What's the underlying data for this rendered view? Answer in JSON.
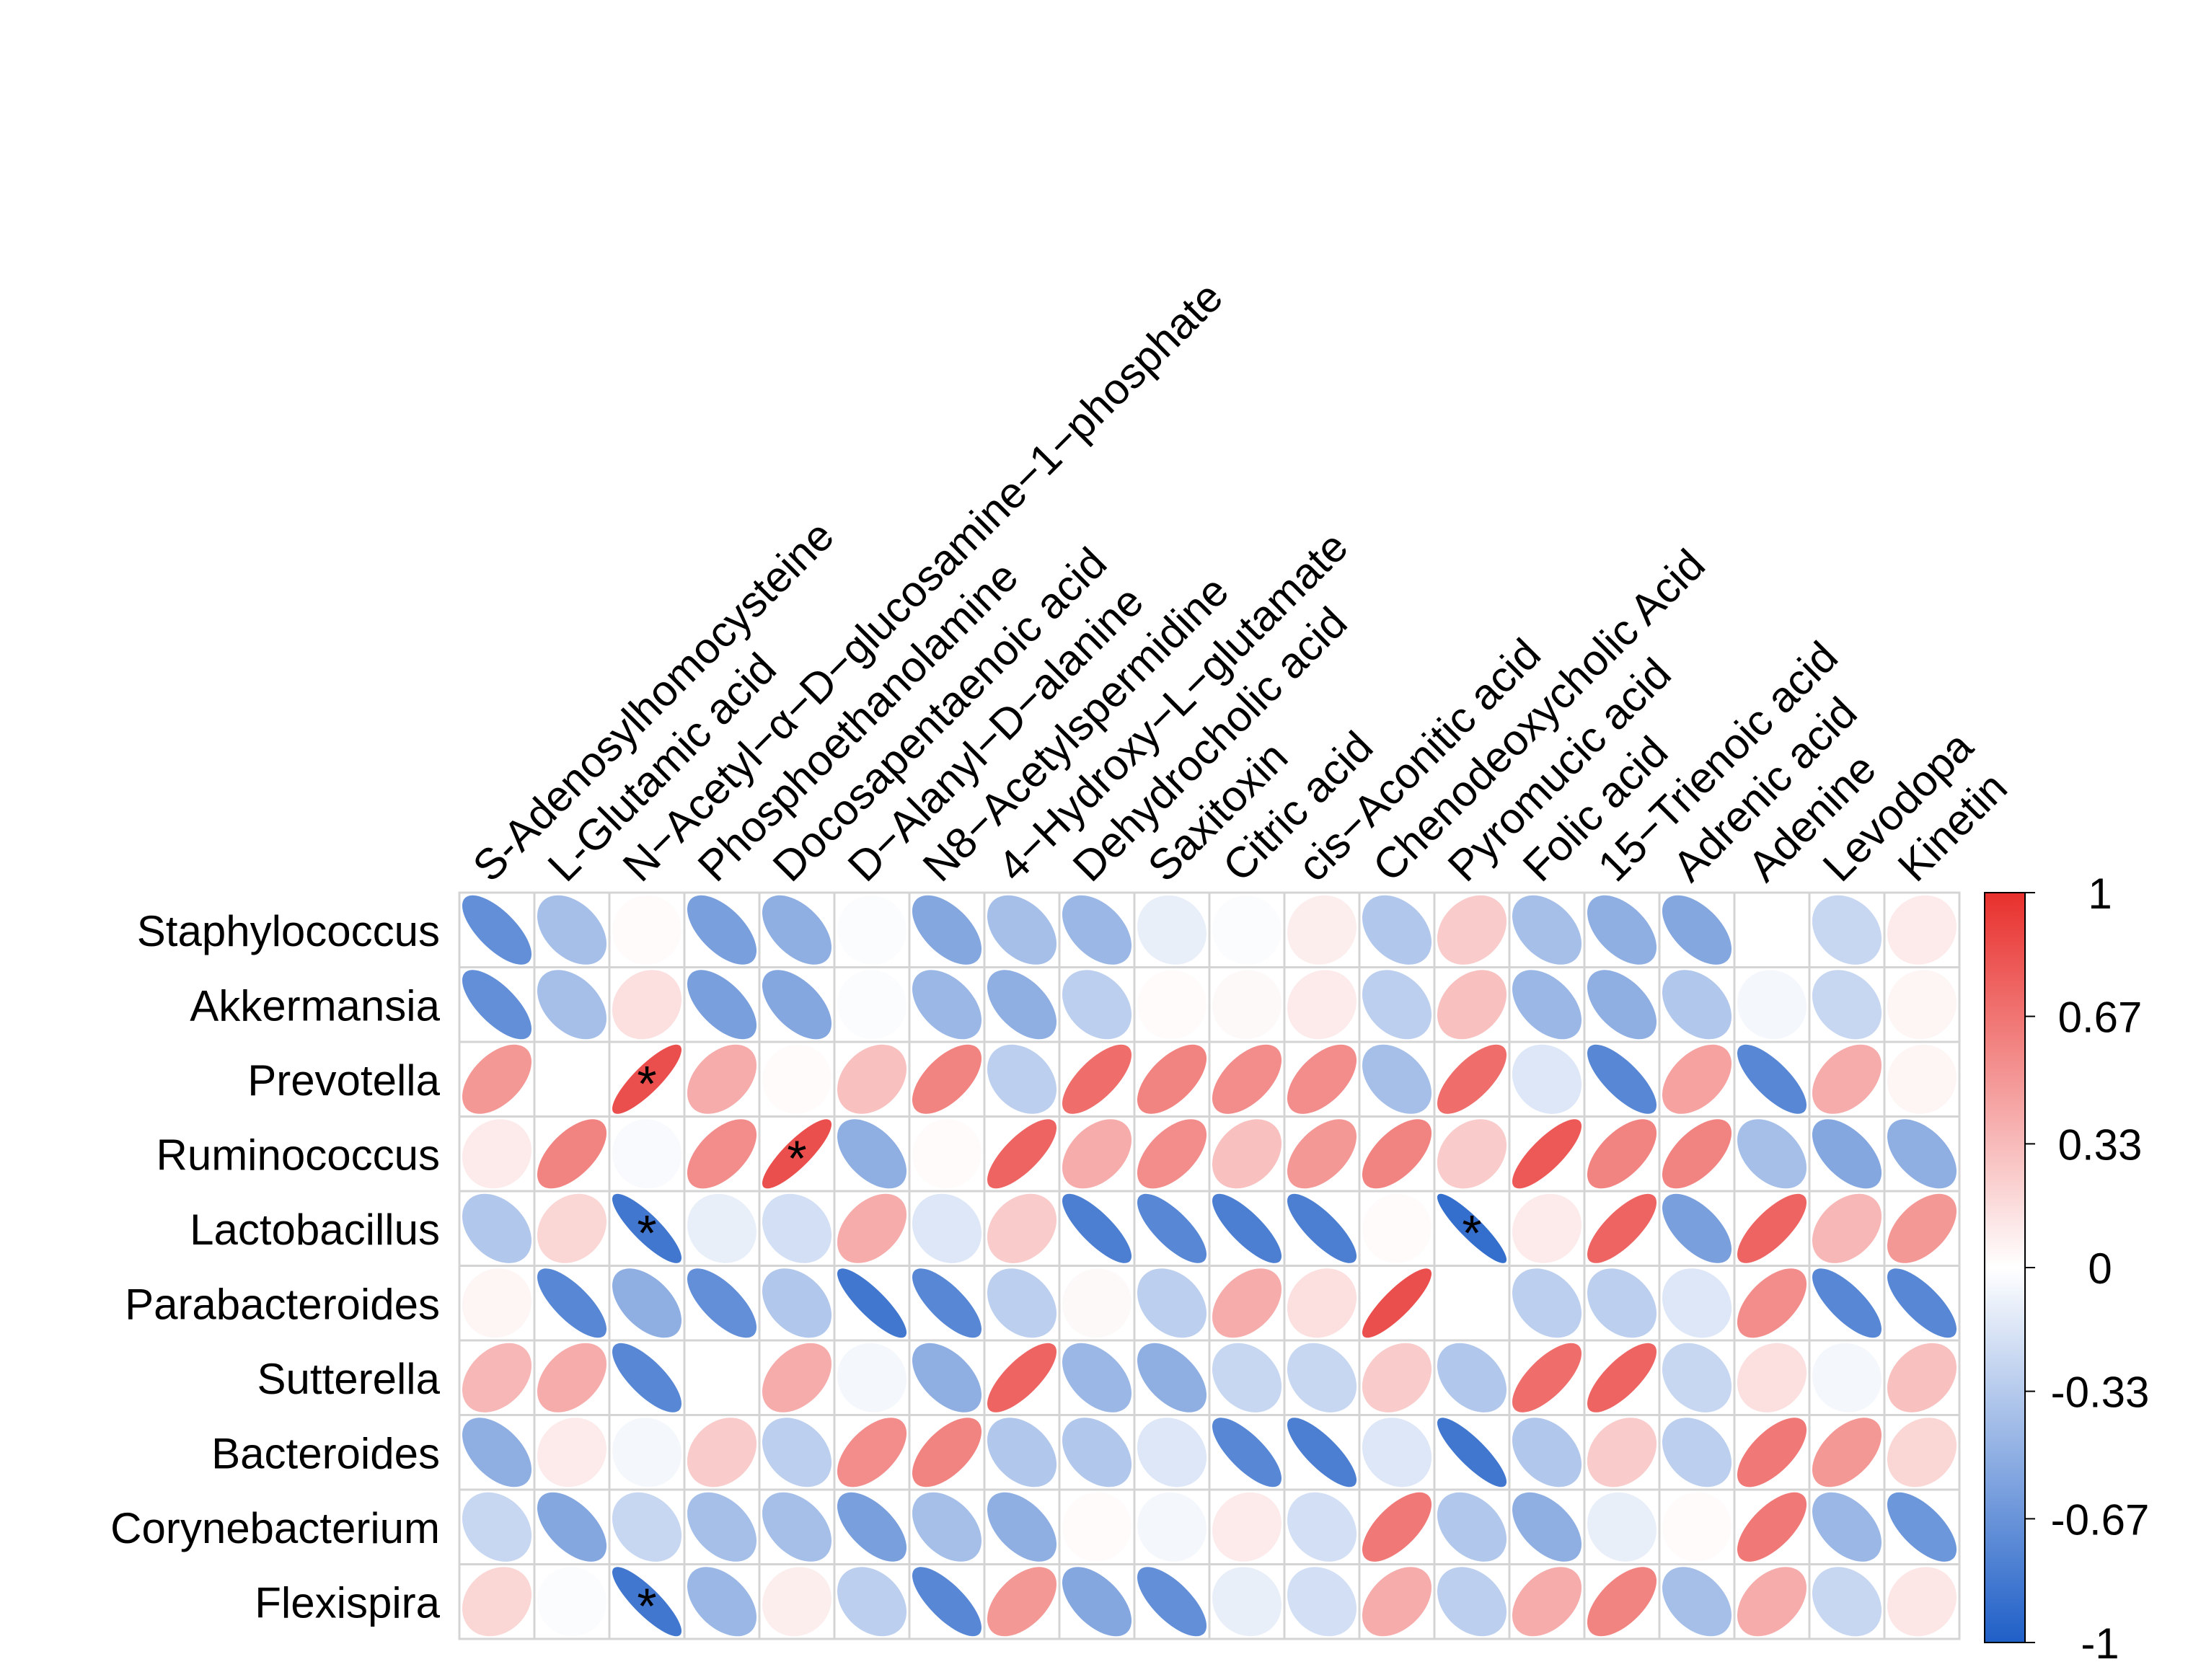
{
  "chart_data": {
    "type": "heatmap",
    "title": "",
    "columns": [
      "S-Adenosylhomocysteine",
      "L-Glutamic acid",
      "N−Acetyl−α−D−glucosamine−1−phosphate",
      "Phosphoethanolamine",
      "Docosapentaenoic acid",
      "D−Alanyl−D−alanine",
      "N8−Acetylspermidine",
      "4−Hydroxy−L−glutamate",
      "Dehydrocholic acid",
      "Saxitoxin",
      "Citric acid",
      "cis−Aconitic acid",
      "Chenodeoxycholic Acid",
      "Pyromucic acid",
      "Folic acid",
      "15−Trienoic acid",
      "Adrenic acid",
      "Adenine",
      "Levodopa",
      "Kinetin"
    ],
    "rows": [
      "Staphylococcus",
      "Akkermansia",
      "Prevotella",
      "Ruminococcus",
      "Lactobacillus",
      "Parabacteroides",
      "Sutterella",
      "Bacteroides",
      "Corynebacterium",
      "Flexispira"
    ],
    "values": [
      [
        -0.7,
        -0.4,
        0.02,
        -0.6,
        -0.5,
        -0.02,
        -0.55,
        -0.4,
        -0.45,
        -0.1,
        -0.02,
        0.08,
        -0.35,
        0.25,
        -0.4,
        -0.5,
        -0.55,
        0.0,
        -0.25,
        0.1
      ],
      [
        -0.7,
        -0.4,
        0.15,
        -0.6,
        -0.55,
        -0.02,
        -0.45,
        -0.5,
        -0.3,
        0.02,
        0.03,
        0.1,
        -0.3,
        0.3,
        -0.45,
        -0.5,
        -0.35,
        -0.05,
        -0.25,
        0.05
      ],
      [
        0.5,
        0.0,
        0.85,
        0.4,
        0.02,
        0.3,
        0.6,
        -0.3,
        0.7,
        0.6,
        0.55,
        0.55,
        -0.4,
        0.7,
        -0.15,
        -0.75,
        0.45,
        -0.75,
        0.4,
        0.05
      ],
      [
        0.1,
        0.6,
        -0.03,
        0.55,
        0.85,
        -0.5,
        0.02,
        0.75,
        0.4,
        0.55,
        0.3,
        0.5,
        0.6,
        0.25,
        0.8,
        0.6,
        0.6,
        -0.4,
        -0.55,
        -0.5
      ],
      [
        -0.35,
        0.2,
        -0.85,
        -0.1,
        -0.2,
        0.4,
        -0.15,
        0.25,
        -0.8,
        -0.75,
        -0.8,
        -0.8,
        0.02,
        -0.9,
        0.1,
        0.75,
        -0.6,
        0.75,
        0.35,
        0.5
      ],
      [
        0.05,
        -0.75,
        -0.5,
        -0.7,
        -0.35,
        -0.85,
        -0.75,
        -0.3,
        0.03,
        -0.3,
        0.4,
        0.15,
        0.85,
        0.0,
        -0.3,
        -0.3,
        -0.15,
        0.55,
        -0.75,
        -0.75
      ],
      [
        0.35,
        0.4,
        -0.75,
        0.0,
        0.4,
        -0.05,
        -0.5,
        0.75,
        -0.45,
        -0.5,
        -0.25,
        -0.25,
        0.25,
        -0.35,
        0.7,
        0.75,
        -0.25,
        0.15,
        -0.05,
        0.3
      ],
      [
        -0.5,
        0.1,
        -0.05,
        0.25,
        -0.3,
        0.55,
        0.6,
        -0.35,
        -0.35,
        -0.15,
        -0.75,
        -0.8,
        -0.15,
        -0.85,
        -0.35,
        0.25,
        -0.3,
        0.65,
        0.5,
        0.2
      ],
      [
        -0.25,
        -0.55,
        -0.25,
        -0.4,
        -0.4,
        -0.6,
        -0.4,
        -0.5,
        0.02,
        -0.05,
        0.1,
        -0.2,
        0.65,
        -0.35,
        -0.5,
        -0.1,
        0.02,
        0.65,
        -0.45,
        -0.65
      ],
      [
        0.2,
        -0.02,
        -0.85,
        -0.45,
        0.08,
        -0.3,
        -0.75,
        0.5,
        -0.55,
        -0.7,
        -0.1,
        -0.2,
        0.4,
        -0.3,
        0.4,
        0.6,
        -0.4,
        0.4,
        -0.25,
        0.12
      ]
    ],
    "stars": [
      {
        "row": 2,
        "col": 2,
        "label": "*"
      },
      {
        "row": 3,
        "col": 4,
        "label": "*"
      },
      {
        "row": 4,
        "col": 2,
        "label": "*"
      },
      {
        "row": 4,
        "col": 13,
        "label": "*"
      },
      {
        "row": 9,
        "col": 2,
        "label": "*"
      }
    ],
    "color_scale": {
      "min": -1,
      "max": 1,
      "low_color": "#1f5fc7",
      "mid_color": "#ffffff",
      "high_color": "#e8302d",
      "tick_labels": [
        "1",
        "0.67",
        "0.33",
        "0",
        "-0.33",
        "-0.67",
        "-1"
      ],
      "tick_values": [
        1,
        0.67,
        0.33,
        0,
        -0.33,
        -0.67,
        -1
      ]
    },
    "legend_position": "right",
    "grid": true
  }
}
